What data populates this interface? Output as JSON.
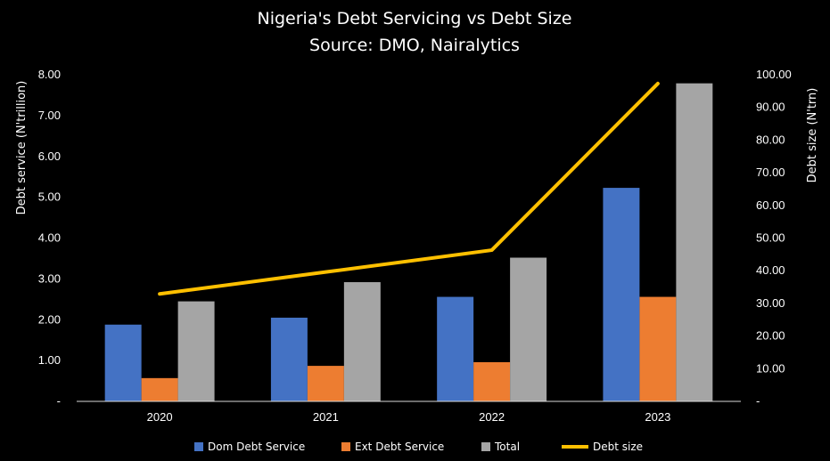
{
  "chart_data": {
    "type": "bar",
    "title": "Nigeria's Debt Servicing vs Debt Size",
    "subtitle": "Source: DMO, Nairalytics",
    "categories": [
      "2020",
      "2021",
      "2022",
      "2023"
    ],
    "ylabel": "Debt service (N'trillion)",
    "ylabel_right": "Debt size (N'trn)",
    "ylim": [
      0,
      8
    ],
    "ylim_right": [
      0,
      100
    ],
    "y_ticks": [
      "-",
      "1.00",
      "2.00",
      "3.00",
      "4.00",
      "5.00",
      "6.00",
      "7.00",
      "8.00"
    ],
    "y_right_ticks": [
      "-",
      "10.00",
      "20.00",
      "30.00",
      "40.00",
      "50.00",
      "60.00",
      "70.00",
      "80.00",
      "90.00",
      "100.00"
    ],
    "grid": false,
    "legend_position": "bottom",
    "series": [
      {
        "name": "Dom Debt Service",
        "type": "bar",
        "axis": "left",
        "color": "#4472C4",
        "values": [
          1.88,
          2.05,
          2.56,
          5.23
        ]
      },
      {
        "name": "Ext Debt Service",
        "type": "bar",
        "axis": "left",
        "color": "#ED7D31",
        "values": [
          0.57,
          0.87,
          0.96,
          2.56
        ]
      },
      {
        "name": "Total",
        "type": "bar",
        "axis": "left",
        "color": "#A5A5A5",
        "values": [
          2.45,
          2.92,
          3.52,
          7.79
        ]
      },
      {
        "name": "Debt size",
        "type": "line",
        "axis": "right",
        "color": "#FFC000",
        "values": [
          32.9,
          39.6,
          46.3,
          97.3
        ]
      }
    ]
  }
}
